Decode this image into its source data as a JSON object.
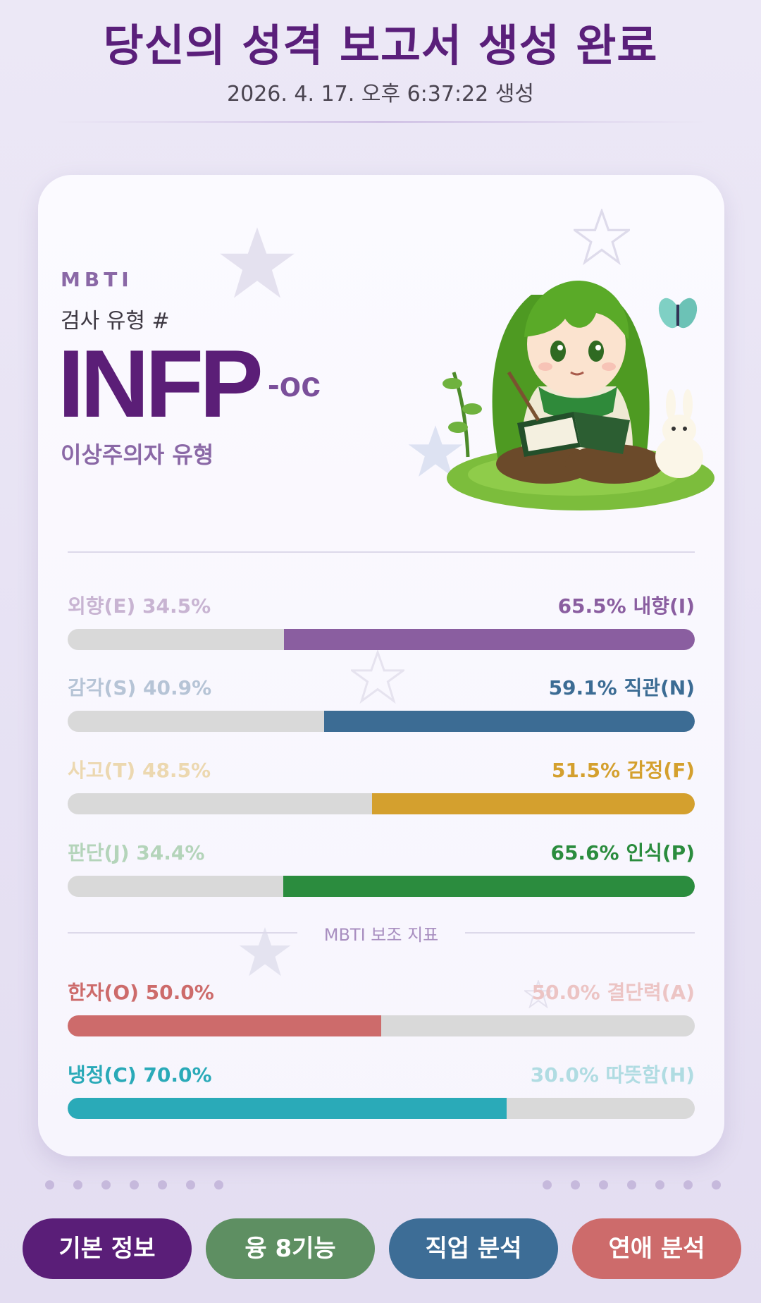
{
  "header": {
    "title": "당신의 성격 보고서 생성 완료",
    "generated": "2026. 4. 17. 오후 6:37:22 생성"
  },
  "card": {
    "mbti_label": "MBTI",
    "type_label": "검사 유형 #",
    "type_code": "INFP",
    "type_suffix": "-oc",
    "type_desc": "이상주의자 유형",
    "illustration": "girl-reading-book-with-rabbit-illustration"
  },
  "dimensions": [
    {
      "left": "외향(E) 34.5%",
      "right": "65.5% 내향(I)",
      "dominant": "right",
      "left_pct": 34.5,
      "right_pct": 65.5,
      "color": "#8a5ea0",
      "faded": "#c8b4d2"
    },
    {
      "left": "감각(S) 40.9%",
      "right": "59.1% 직관(N)",
      "dominant": "right",
      "left_pct": 40.9,
      "right_pct": 59.1,
      "color": "#3c6c94",
      "faded": "#b6c4d6"
    },
    {
      "left": "사고(T) 48.5%",
      "right": "51.5% 감정(F)",
      "dominant": "right",
      "left_pct": 48.5,
      "right_pct": 51.5,
      "color": "#d4a02e",
      "faded": "#ecd8b0"
    },
    {
      "left": "판단(J) 34.4%",
      "right": "65.6% 인식(P)",
      "dominant": "right",
      "left_pct": 34.4,
      "right_pct": 65.6,
      "color": "#2b8c3e",
      "faded": "#b4d4ba"
    }
  ],
  "aux_section": {
    "label": "MBTI 보조 지표"
  },
  "aux": [
    {
      "left": "한자(O) 50.0%",
      "right": "50.0% 결단력(A)",
      "dominant": "left",
      "left_pct": 50.0,
      "right_pct": 50.0,
      "color": "#cd6b6b",
      "faded": "#ecc4c4"
    },
    {
      "left": "냉정(C) 70.0%",
      "right": "30.0% 따뜻함(H)",
      "dominant": "left",
      "left_pct": 70.0,
      "right_pct": 30.0,
      "color": "#2aaab8",
      "faded": "#b0dce2"
    }
  ],
  "nav": [
    {
      "label": "기본 정보",
      "color": "#5a1e78"
    },
    {
      "label": "융 8기능",
      "color": "#5e8f62"
    },
    {
      "label": "직업 분석",
      "color": "#3d6d96"
    },
    {
      "label": "연애 분석",
      "color": "#cd6b6b"
    }
  ]
}
